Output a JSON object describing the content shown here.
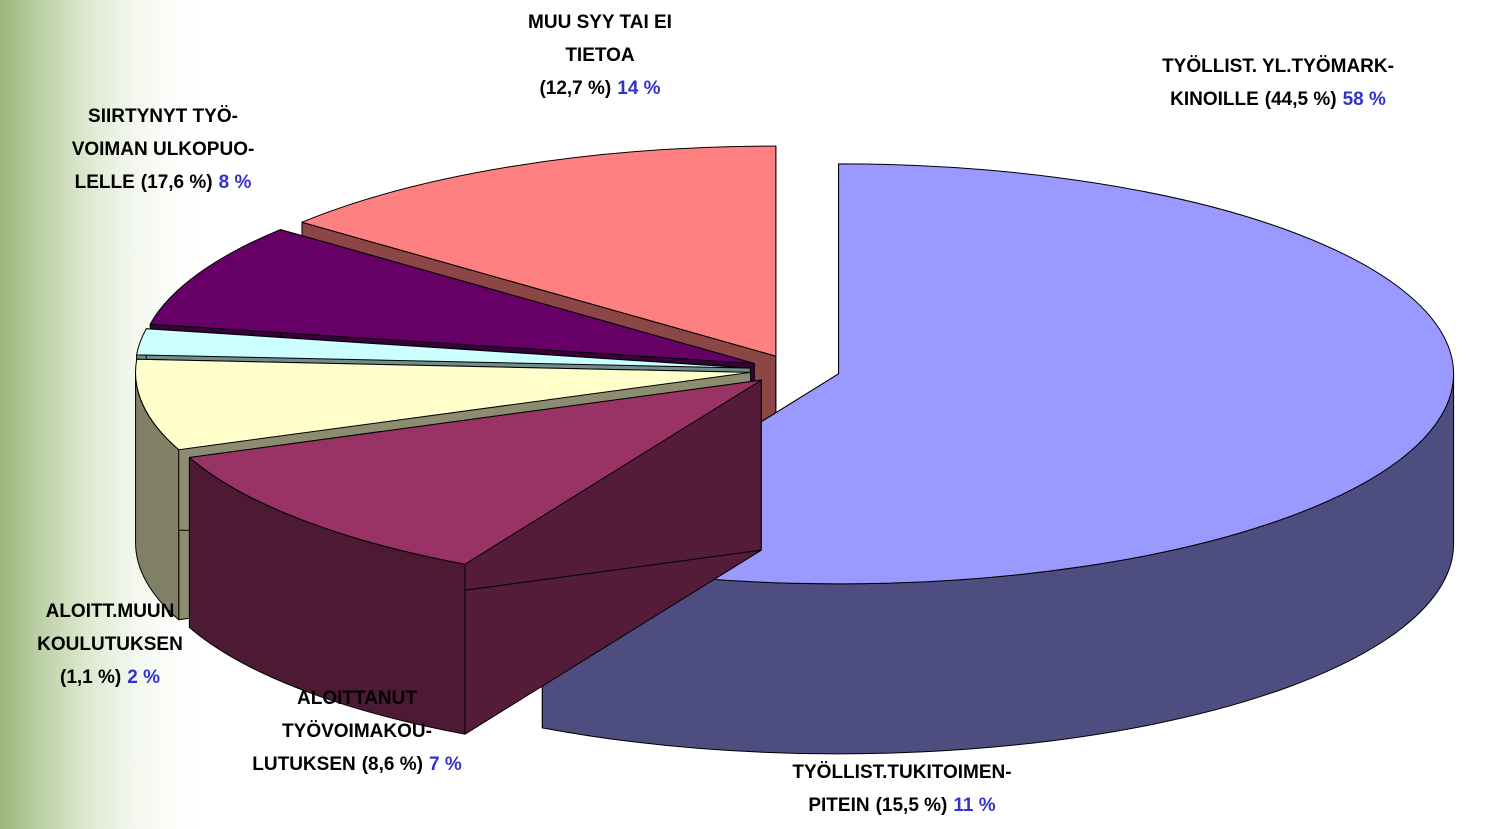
{
  "chart_data": {
    "type": "pie3d",
    "categories": [
      [
        "TYÖLLIST. YL.TYÖMARK-",
        "KINOILLE"
      ],
      [
        "TYÖLLIST.TUKITOIMEN-",
        "PITEIN"
      ],
      [
        "ALOITTANUT",
        "TYÖVOIMAKOU-",
        "LUTUKSEN"
      ],
      [
        "ALOITT.MUUN",
        "KOULUTUKSEN"
      ],
      [
        "SIIRTYNYT TYÖ-",
        "VOIMAN ULKOPUO-",
        "LELLE"
      ],
      [
        "MUU SYY TAI EI",
        "TIETOA"
      ]
    ],
    "values": [
      58,
      11,
      7,
      2,
      8,
      14
    ],
    "value_labels": [
      "58 %",
      "11 %",
      "7 %",
      "2 %",
      "8 %",
      "14 %"
    ],
    "previous_values": [
      44.5,
      15.5,
      8.6,
      1.1,
      17.6,
      12.7
    ],
    "previous_value_labels": [
      "(44,5 %)",
      "(15,5 %)",
      "(8,6 %)",
      "(1,1 %)",
      "(17,6 %)",
      "(12,7 %)"
    ],
    "colors": [
      "#9999ff",
      "#993366",
      "#ffffcc",
      "#ccffff",
      "#660066",
      "#ff8080"
    ]
  }
}
